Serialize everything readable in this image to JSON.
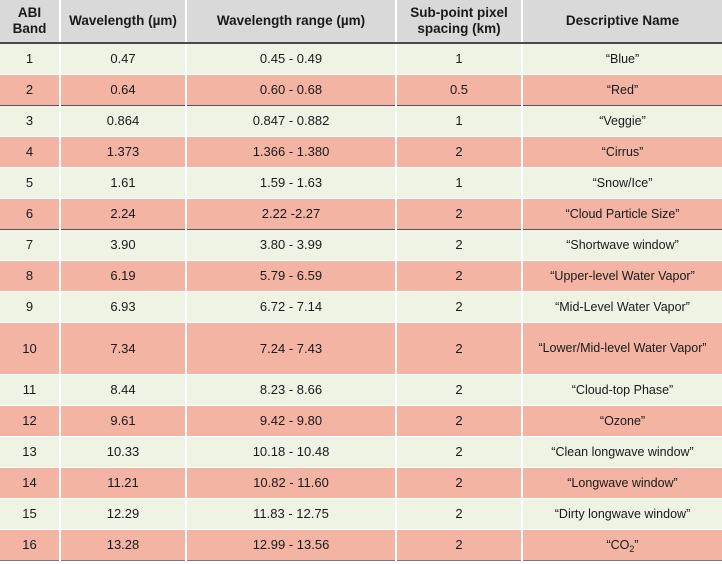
{
  "headers": {
    "band": "ABI Band",
    "wavelength": "Wavelength (µm)",
    "range": "Wavelength range  (µm)",
    "spacing": "Sub-point pixel spacing (km)",
    "name": "Descriptive Name"
  },
  "rows": [
    {
      "band": "1",
      "wavelength": "0.47",
      "range": "0.45 - 0.49",
      "spacing": "1",
      "name": "“Blue”"
    },
    {
      "band": "2",
      "wavelength": "0.64",
      "range": "0.60 - 0.68",
      "spacing": "0.5",
      "name": "“Red”"
    },
    {
      "band": "3",
      "wavelength": "0.864",
      "range": "0.847 - 0.882",
      "spacing": "1",
      "name": "“Veggie”"
    },
    {
      "band": "4",
      "wavelength": "1.373",
      "range": "1.366 - 1.380",
      "spacing": "2",
      "name": "“Cirrus”"
    },
    {
      "band": "5",
      "wavelength": "1.61",
      "range": "1.59 - 1.63",
      "spacing": "1",
      "name": "“Snow/Ice”"
    },
    {
      "band": "6",
      "wavelength": "2.24",
      "range": "2.22 -2.27",
      "spacing": "2",
      "name": "“Cloud Particle Size”"
    },
    {
      "band": "7",
      "wavelength": "3.90",
      "range": "3.80 - 3.99",
      "spacing": "2",
      "name": "“Shortwave window”"
    },
    {
      "band": "8",
      "wavelength": "6.19",
      "range": "5.79 - 6.59",
      "spacing": "2",
      "name": "“Upper-level  Water Vapor”"
    },
    {
      "band": "9",
      "wavelength": "6.93",
      "range": "6.72 - 7.14",
      "spacing": "2",
      "name": "“Mid-Level  Water Vapor”"
    },
    {
      "band": "10",
      "wavelength": "7.34",
      "range": "7.24 - 7.43",
      "spacing": "2",
      "name": "“Lower/Mid-level Water Vapor”"
    },
    {
      "band": "11",
      "wavelength": "8.44",
      "range": "8.23 - 8.66",
      "spacing": "2",
      "name": "“Cloud-top Phase”"
    },
    {
      "band": "12",
      "wavelength": "9.61",
      "range": "9.42 - 9.80",
      "spacing": "2",
      "name": "“Ozone”"
    },
    {
      "band": "13",
      "wavelength": "10.33",
      "range": "10.18 - 10.48",
      "spacing": "2",
      "name": "“Clean longwave  window”"
    },
    {
      "band": "14",
      "wavelength": "11.21",
      "range": "10.82 - 11.60",
      "spacing": "2",
      "name": "“Longwave  window”"
    },
    {
      "band": "15",
      "wavelength": "12.29",
      "range": "11.83 - 12.75",
      "spacing": "2",
      "name": "“Dirty longwave  window”"
    },
    {
      "band": "16",
      "wavelength": "13.28",
      "range": "12.99 - 13.56",
      "spacing": "2",
      "name_prefix": "“CO",
      "name_sub": "2",
      "name_suffix": "”"
    }
  ],
  "colors": {
    "header_bg": "#d9d9d9",
    "row_light": "#eef3e3",
    "row_salmon": "#f3b4a4"
  }
}
